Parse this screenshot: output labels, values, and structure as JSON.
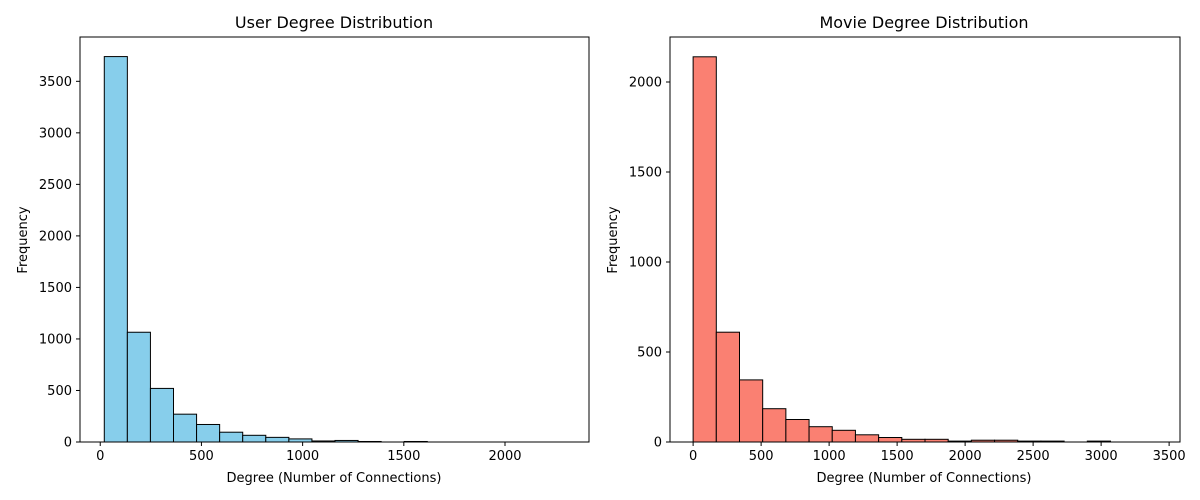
{
  "chart_data": [
    {
      "type": "bar",
      "title": "User Degree Distribution",
      "xlabel": "Degree (Number of Connections)",
      "ylabel": "Frequency",
      "bin_edges": [
        20,
        134,
        248,
        362,
        476,
        590,
        704,
        818,
        932,
        1046,
        1160,
        1274,
        1388,
        1502,
        1616,
        1730,
        1844,
        1958,
        2072,
        2186,
        2300
      ],
      "values": [
        3740,
        1065,
        520,
        270,
        170,
        95,
        65,
        45,
        30,
        10,
        15,
        5,
        0,
        5,
        0,
        0,
        0,
        0,
        0,
        0
      ],
      "xlim": [
        -100,
        2415
      ],
      "ylim": [
        0,
        3930
      ],
      "xticks": [
        0,
        500,
        1000,
        1500,
        2000
      ],
      "yticks": [
        0,
        500,
        1000,
        1500,
        2000,
        2500,
        3000,
        3500
      ],
      "bar_color": "#87ceeb",
      "edge_color": "#000000",
      "grid": false
    },
    {
      "type": "bar",
      "title": "Movie Degree Distribution",
      "xlabel": "Degree (Number of Connections)",
      "ylabel": "Frequency",
      "bin_edges": [
        0,
        170.5,
        341,
        511.5,
        682,
        852.5,
        1023,
        1193.5,
        1364,
        1534.5,
        1705,
        1875.5,
        2046,
        2216.5,
        2387,
        2557.5,
        2728,
        2898.5,
        3069,
        3239.5,
        3410
      ],
      "values": [
        2140,
        610,
        345,
        185,
        125,
        85,
        65,
        40,
        25,
        15,
        15,
        5,
        10,
        10,
        5,
        5,
        0,
        5,
        0,
        0
      ],
      "xlim": [
        -170,
        3580
      ],
      "ylim": [
        0,
        2250
      ],
      "xticks": [
        0,
        500,
        1000,
        1500,
        2000,
        2500,
        3000,
        3500
      ],
      "yticks": [
        0,
        500,
        1000,
        1500,
        2000
      ],
      "bar_color": "#fa8072",
      "edge_color": "#000000",
      "grid": false
    }
  ]
}
